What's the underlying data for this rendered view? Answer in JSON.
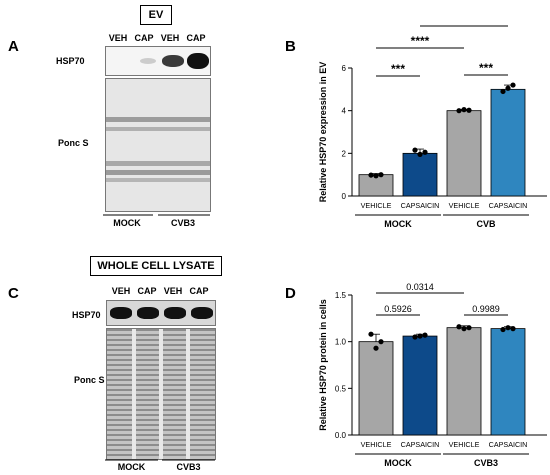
{
  "panels": {
    "a": "A",
    "b": "B",
    "c": "C",
    "d": "D"
  },
  "ev": {
    "title": "EV",
    "lanes": [
      "VEH",
      "CAP",
      "VEH",
      "CAP"
    ],
    "hsp70_label": "HSP70",
    "ponc_label": "Ponc S",
    "groups": [
      "MOCK",
      "CVB3"
    ]
  },
  "wcl": {
    "title": "WHOLE CELL LYSATE",
    "lanes": [
      "VEH",
      "CAP",
      "VEH",
      "CAP"
    ],
    "hsp70_label": "HSP70",
    "ponc_label": "Ponc S",
    "groups": [
      "MOCK",
      "CVB3"
    ]
  },
  "colors": {
    "gray": "#a6a6a6",
    "dark_blue": "#0d4a8a",
    "light_blue": "#2f86bf"
  },
  "chart_data": [
    {
      "type": "bar",
      "panel": "B",
      "categories": [
        "VEHICLE",
        "CAPSAICIN",
        "VEHICLE",
        "CAPSAICIN"
      ],
      "groups": [
        "MOCK",
        "CVB"
      ],
      "values": [
        1.0,
        2.0,
        4.0,
        5.0
      ],
      "errors": [
        0.05,
        0.2,
        0.06,
        0.2
      ],
      "points": [
        [
          0.98,
          0.95,
          1.0
        ],
        [
          2.15,
          1.95,
          2.05
        ],
        [
          4.0,
          4.05,
          4.02
        ],
        [
          4.9,
          5.05,
          5.2
        ]
      ],
      "ylabel": "Relative HSP70 expression in EV",
      "ylim": [
        0,
        6
      ],
      "yticks": [
        0,
        2,
        4,
        6
      ],
      "significance": [
        {
          "from": 0,
          "to": 1,
          "label": "***"
        },
        {
          "from": 2,
          "to": 3,
          "label": "***"
        },
        {
          "from": 0,
          "to": 2,
          "label": "****"
        },
        {
          "from": 1,
          "to": 3,
          "label": "****"
        }
      ]
    },
    {
      "type": "bar",
      "panel": "D",
      "categories": [
        "VEHICLE",
        "CAPSAICIN",
        "VEHICLE",
        "CAPSAICIN"
      ],
      "groups": [
        "MOCK",
        "CVB3"
      ],
      "values": [
        1.0,
        1.06,
        1.15,
        1.14
      ],
      "errors": [
        0.08,
        0.02,
        0.02,
        0.02
      ],
      "points": [
        [
          1.08,
          0.93,
          1.0
        ],
        [
          1.05,
          1.06,
          1.07
        ],
        [
          1.16,
          1.14,
          1.15
        ],
        [
          1.13,
          1.15,
          1.14
        ]
      ],
      "ylabel": "Relative HSP70 protein in cells",
      "ylim": [
        0,
        1.5
      ],
      "yticks": [
        "0.0",
        "0.5",
        "1.0",
        "1.5"
      ],
      "significance": [
        {
          "from": 0,
          "to": 1,
          "label": "0.5926"
        },
        {
          "from": 2,
          "to": 3,
          "label": "0.9989"
        },
        {
          "from": 0,
          "to": 2,
          "label": "0.0314"
        }
      ]
    }
  ]
}
